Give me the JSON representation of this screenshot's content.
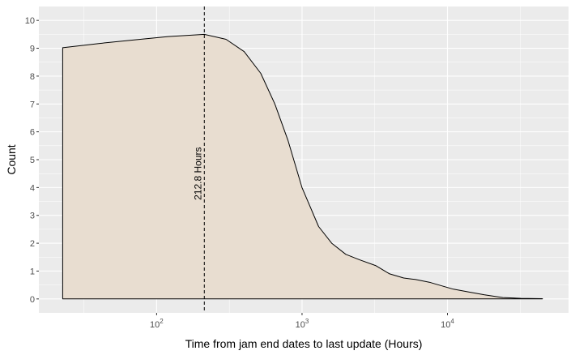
{
  "chart_data": {
    "type": "area",
    "xscale": "log10",
    "xlim": [
      15.5,
      68000
    ],
    "ylim": [
      -0.5,
      10.5
    ],
    "xlabel": "Time from jam end dates to last update (Hours)",
    "ylabel": "Count",
    "x_ticks": [
      {
        "value": 100,
        "base": "10",
        "exp": "2"
      },
      {
        "value": 1000,
        "base": "10",
        "exp": "3"
      },
      {
        "value": 10000,
        "base": "10",
        "exp": "4"
      }
    ],
    "y_ticks": [
      0,
      1,
      2,
      3,
      4,
      5,
      6,
      7,
      8,
      9,
      10
    ],
    "grid": true,
    "fill_color": "#e8ddd0",
    "line_color": "#000000",
    "panel_color": "#ebebeb",
    "series": [
      {
        "x": [
          22.6,
          40,
          70,
          120,
          212.8,
          300,
          400,
          520,
          650,
          800,
          1000,
          1300,
          1600,
          2000,
          2500,
          3200,
          4000,
          5000,
          6000,
          7500,
          9000,
          11000,
          14000,
          18000,
          24000,
          32000,
          45000
        ],
        "y": [
          9.02,
          9.17,
          9.3,
          9.42,
          9.5,
          9.32,
          8.88,
          8.1,
          7.0,
          5.7,
          4.0,
          2.6,
          2.0,
          1.6,
          1.4,
          1.2,
          0.9,
          0.75,
          0.7,
          0.6,
          0.48,
          0.35,
          0.25,
          0.15,
          0.05,
          0.02,
          0.01
        ]
      }
    ],
    "reference_line": {
      "x": 212.8,
      "label": "212.8 Hours",
      "style": "dashed"
    }
  }
}
